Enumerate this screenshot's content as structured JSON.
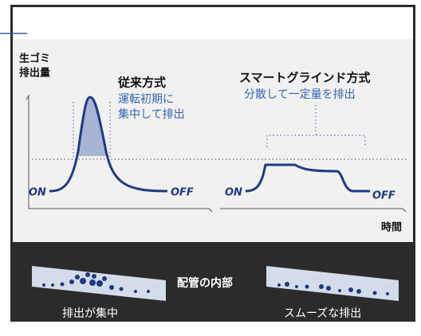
{
  "y_axis_label": [
    "生ゴミ",
    "排出量"
  ],
  "conventional": {
    "title": "従来方式",
    "description": [
      "運転初期に",
      "集中して排出"
    ],
    "on": "ON",
    "off": "OFF"
  },
  "smart": {
    "title": "スマートグラインド方式",
    "description": "分散して一定量を排出",
    "on": "ON",
    "off": "OFF"
  },
  "x_axis_label": "時間",
  "pipe": {
    "center_label": "配管の内部",
    "left_caption": "排出が集中",
    "right_caption": "スムーズな排出"
  }
}
